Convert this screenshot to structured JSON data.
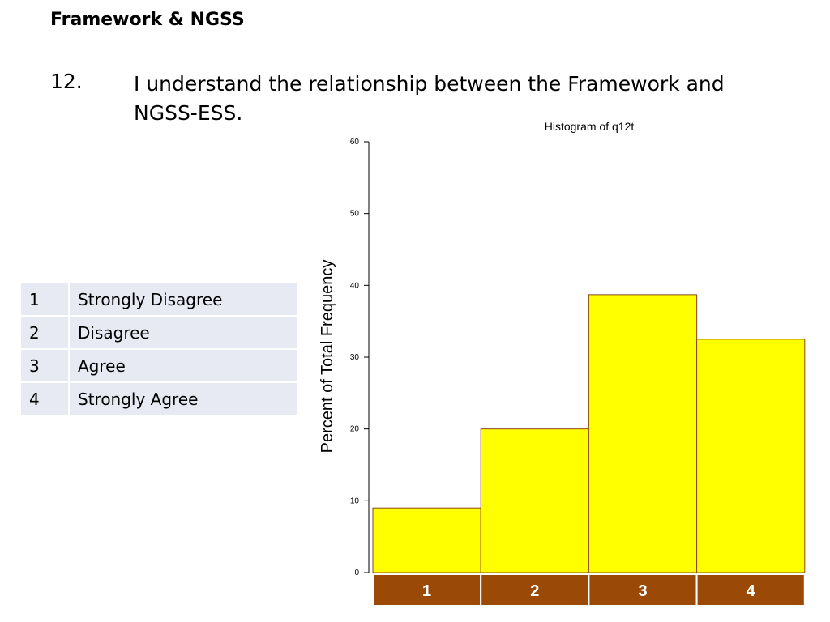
{
  "heading": "Framework & NGSS",
  "question": {
    "number": "12.",
    "text": "I understand the relationship between the Framework and NGSS-ESS."
  },
  "scale": [
    {
      "value": "1",
      "label": "Strongly Disagree"
    },
    {
      "value": "2",
      "label": "Disagree"
    },
    {
      "value": "3",
      "label": "Agree"
    },
    {
      "value": "4",
      "label": "Strongly Agree"
    }
  ],
  "chart_data": {
    "type": "bar",
    "title": "Histogram of q12t",
    "xlabel": "",
    "ylabel": "Percent of Total Frequency",
    "categories": [
      "1",
      "2",
      "3",
      "4"
    ],
    "values": [
      9,
      20,
      38.7,
      32.5
    ],
    "ylim": [
      0,
      60
    ],
    "yticks": [
      0,
      10,
      20,
      30,
      40,
      50,
      60
    ],
    "grid": false,
    "colors": {
      "bar": "#ffff00",
      "bar_stroke": "#8b4513",
      "category_band": "#9a4a06"
    }
  }
}
